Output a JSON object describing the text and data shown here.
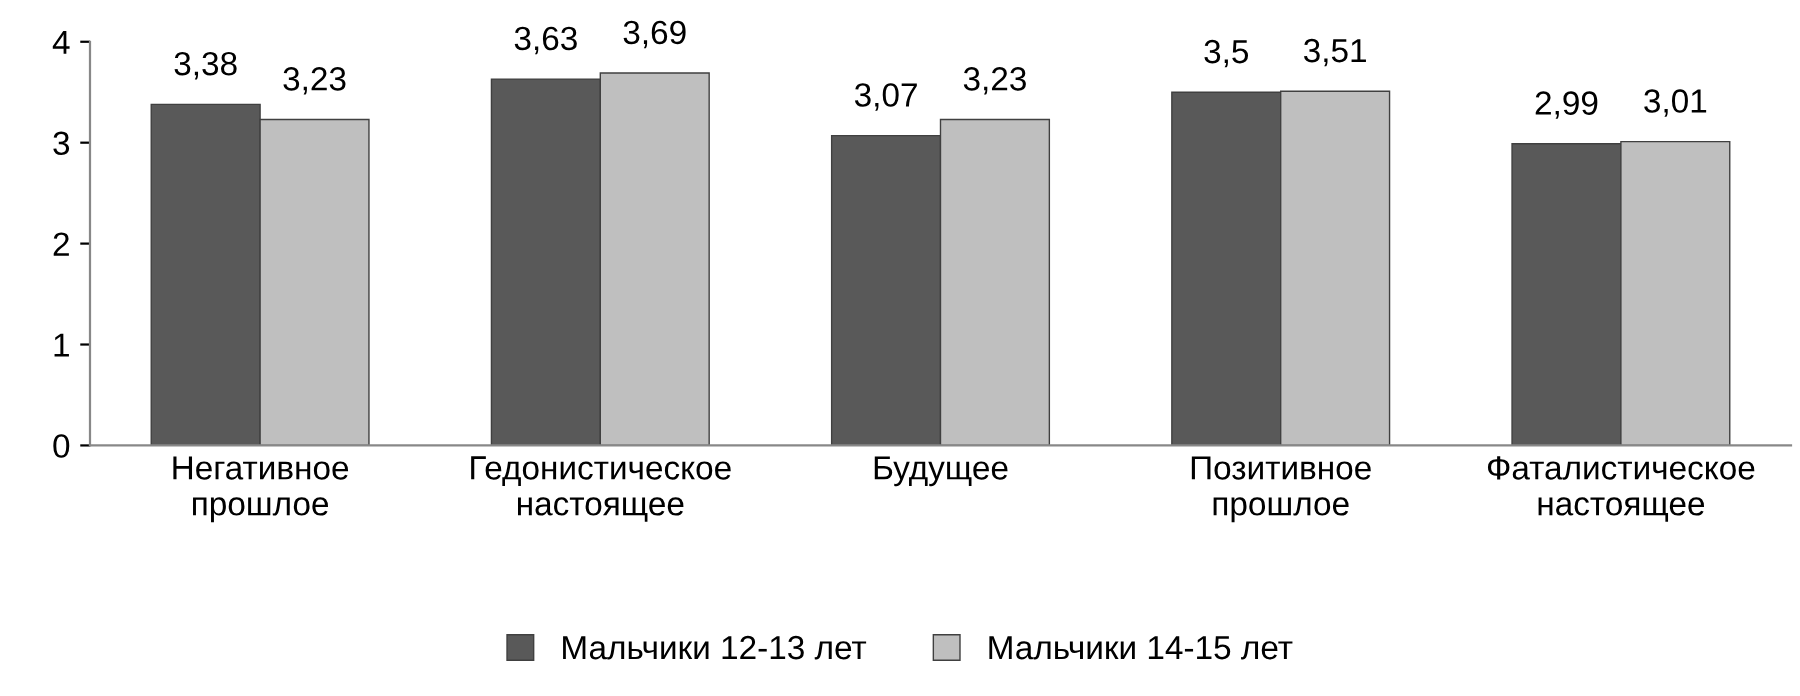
{
  "chart_data": {
    "type": "bar",
    "categories": [
      "Негативное\nпрошлое",
      "Гедонистическое\nнастоящее",
      "Будущее",
      "Позитивное\nпрошлое",
      "Фаталистическое\nнастоящее"
    ],
    "series": [
      {
        "name": "Мальчики 12-13 лет",
        "color": "#595959",
        "values": [
          3.38,
          3.63,
          3.07,
          3.5,
          2.99
        ],
        "value_labels": [
          "3,38",
          "3,63",
          "3,07",
          "3,5",
          "2,99"
        ]
      },
      {
        "name": "Мальчики 14-15 лет",
        "color": "#bfbfbf",
        "values": [
          3.23,
          3.69,
          3.23,
          3.51,
          3.01
        ],
        "value_labels": [
          "3,23",
          "3,69",
          "3,23",
          "3,51",
          "3,01"
        ]
      }
    ],
    "ylim": [
      0,
      4
    ],
    "yticks": [
      0,
      1,
      2,
      3,
      4
    ],
    "grid": false,
    "legend": "bottom"
  }
}
